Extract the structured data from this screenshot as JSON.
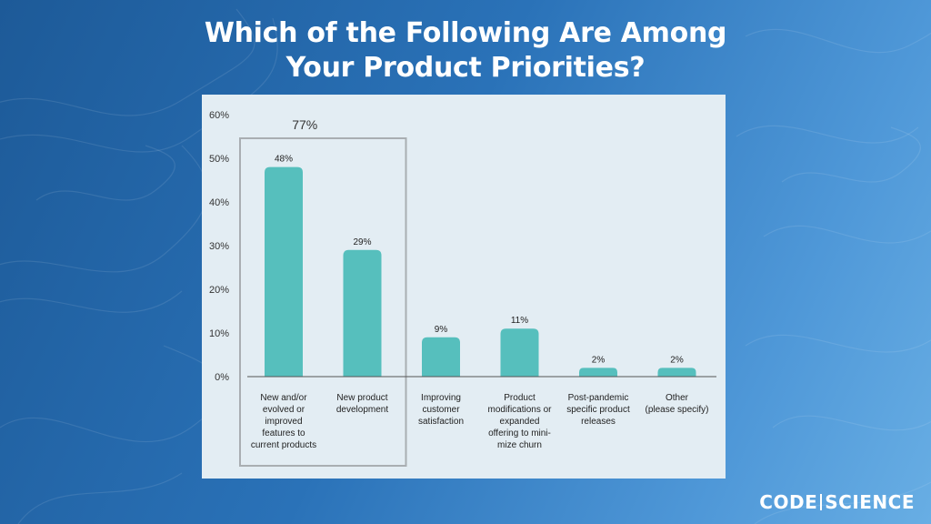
{
  "title_line1": "Which of the Following Are Among",
  "title_line2": "Your Product Priorities?",
  "brand": {
    "left": "CODE",
    "right": "SCIENCE"
  },
  "colors": {
    "bar": "#56bfbd",
    "panel": "#e3edf3",
    "highlight_box": "#a9aeb2",
    "axis": "#555555"
  },
  "chart_data": {
    "type": "bar",
    "categories": [
      "New and/or evolved or improved features to current products",
      "New product development",
      "Improving customer satisfaction",
      "Product modifications or expanded offering to mini-mize churn",
      "Post-pandemic specific product releases",
      "Other (please specify)"
    ],
    "category_lines": [
      [
        "New and/or",
        "evolved or",
        "improved",
        "features to",
        "current products"
      ],
      [
        "New product",
        "development"
      ],
      [
        "Improving",
        "customer",
        "satisfaction"
      ],
      [
        "Product",
        "modifications or",
        "expanded",
        "offering to mini-",
        "mize churn"
      ],
      [
        "Post-pandemic",
        "specific product",
        "releases"
      ],
      [
        "Other",
        "(please specify)"
      ]
    ],
    "values": [
      48,
      29,
      9,
      11,
      2,
      2
    ],
    "data_labels": [
      "48%",
      "29%",
      "9%",
      "11%",
      "2%",
      "2%"
    ],
    "yticks": [
      "0%",
      "10%",
      "20%",
      "30%",
      "40%",
      "50%",
      "60%"
    ],
    "ylim": [
      0,
      60
    ],
    "highlight": {
      "categories": [
        0,
        1
      ],
      "label": "77%"
    },
    "grid": false,
    "legend": "none"
  }
}
